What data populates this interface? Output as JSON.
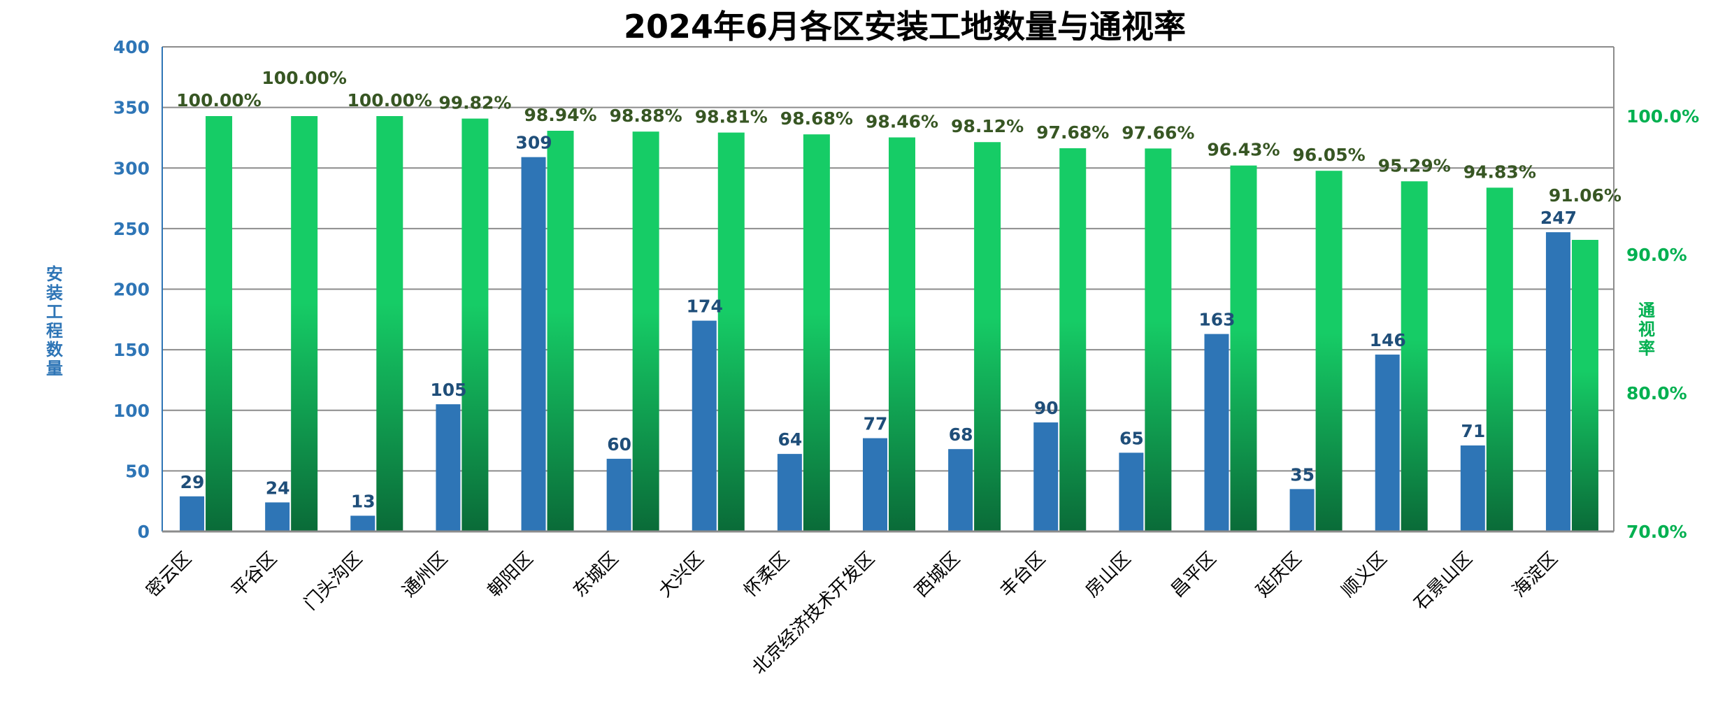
{
  "chart_data": {
    "type": "bar",
    "title": "2024年6月各区安装工地数量与通视率",
    "ylabel": "安装工程数量",
    "y2label": "通视率",
    "ylim": [
      0,
      400
    ],
    "yticks": [
      0,
      50,
      100,
      150,
      200,
      250,
      300,
      350,
      400
    ],
    "y2lim": [
      70,
      105
    ],
    "y2ticks": [
      "70.0%",
      "80.0%",
      "90.0%",
      "100.0%"
    ],
    "y2tick_values": [
      70,
      80,
      90,
      100
    ],
    "grid": true,
    "categories": [
      "密云区",
      "平谷区",
      "门头沟区",
      "通州区",
      "朝阳区",
      "东城区",
      "大兴区",
      "怀柔区",
      "北京经济技术开发区",
      "西城区",
      "丰台区",
      "房山区",
      "昌平区",
      "延庆区",
      "顺义区",
      "石景山区",
      "海淀区"
    ],
    "series": [
      {
        "axis": "left",
        "color": "#2e75b6",
        "values": [
          29,
          24,
          13,
          105,
          309,
          60,
          174,
          64,
          77,
          68,
          90,
          65,
          163,
          35,
          146,
          71,
          247
        ]
      },
      {
        "axis": "right",
        "color": "#16cc66",
        "values": [
          100.0,
          100.0,
          100.0,
          99.82,
          98.94,
          98.88,
          98.81,
          98.68,
          98.46,
          98.12,
          97.68,
          97.66,
          96.43,
          96.05,
          95.29,
          94.83,
          91.06
        ],
        "labels": [
          "100.00%",
          "100.00%",
          "100.00%",
          "99.82%",
          "98.94%",
          "98.88%",
          "98.81%",
          "98.68%",
          "98.46%",
          "98.12%",
          "97.68%",
          "97.66%",
          "96.43%",
          "96.05%",
          "95.29%",
          "94.83%",
          "91.06%"
        ]
      }
    ],
    "colors": {
      "left_axis": "#2e75b6",
      "right_axis": "#00b050",
      "count_label": "#1f4e79",
      "pct_label": "#375623",
      "green_dark": "#0a6b38"
    }
  }
}
